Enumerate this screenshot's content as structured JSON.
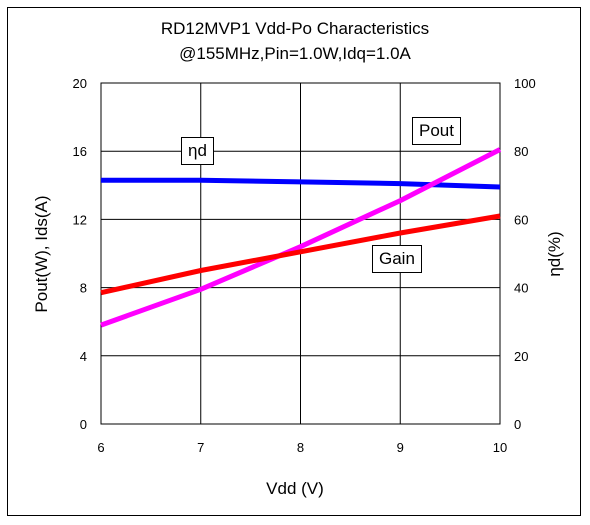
{
  "chart_data": {
    "type": "line",
    "title": "RD12MVP1 Vdd-Po  Characteristics",
    "subtitle": "@155MHz,Pin=1.0W,Idq=1.0A",
    "xlabel": "Vdd (V)",
    "ylabel": "Pout(W), Ids(A)",
    "ylabel_right": "ηd(%)",
    "xlim": [
      6,
      10
    ],
    "ylim": [
      0,
      20
    ],
    "ylim_right": [
      0,
      100
    ],
    "x_ticks": [
      "6",
      "7",
      "8",
      "9",
      "10"
    ],
    "y_ticks": [
      "0",
      "4",
      "8",
      "12",
      "16",
      "20"
    ],
    "y_ticks_right": [
      "0",
      "20",
      "40",
      "60",
      "80",
      "100"
    ],
    "grid": true,
    "series": [
      {
        "name": "ηd",
        "axis": "right",
        "color": "#0000ff",
        "x": [
          6,
          7,
          8,
          9,
          10
        ],
        "y": [
          71.5,
          71.5,
          71.0,
          70.5,
          69.5
        ]
      },
      {
        "name": "Pout",
        "axis": "left",
        "color": "#ff00ff",
        "x": [
          6,
          7,
          8,
          9,
          10
        ],
        "y": [
          5.8,
          7.9,
          10.4,
          13.1,
          16.1
        ]
      },
      {
        "name": "Gain",
        "axis": "left",
        "color": "#ff0000",
        "x": [
          6,
          7,
          8,
          9,
          10
        ],
        "y": [
          7.7,
          9.0,
          10.1,
          11.2,
          12.2
        ]
      }
    ],
    "annotations": [
      "ηd",
      "Pout",
      "Gain"
    ]
  }
}
